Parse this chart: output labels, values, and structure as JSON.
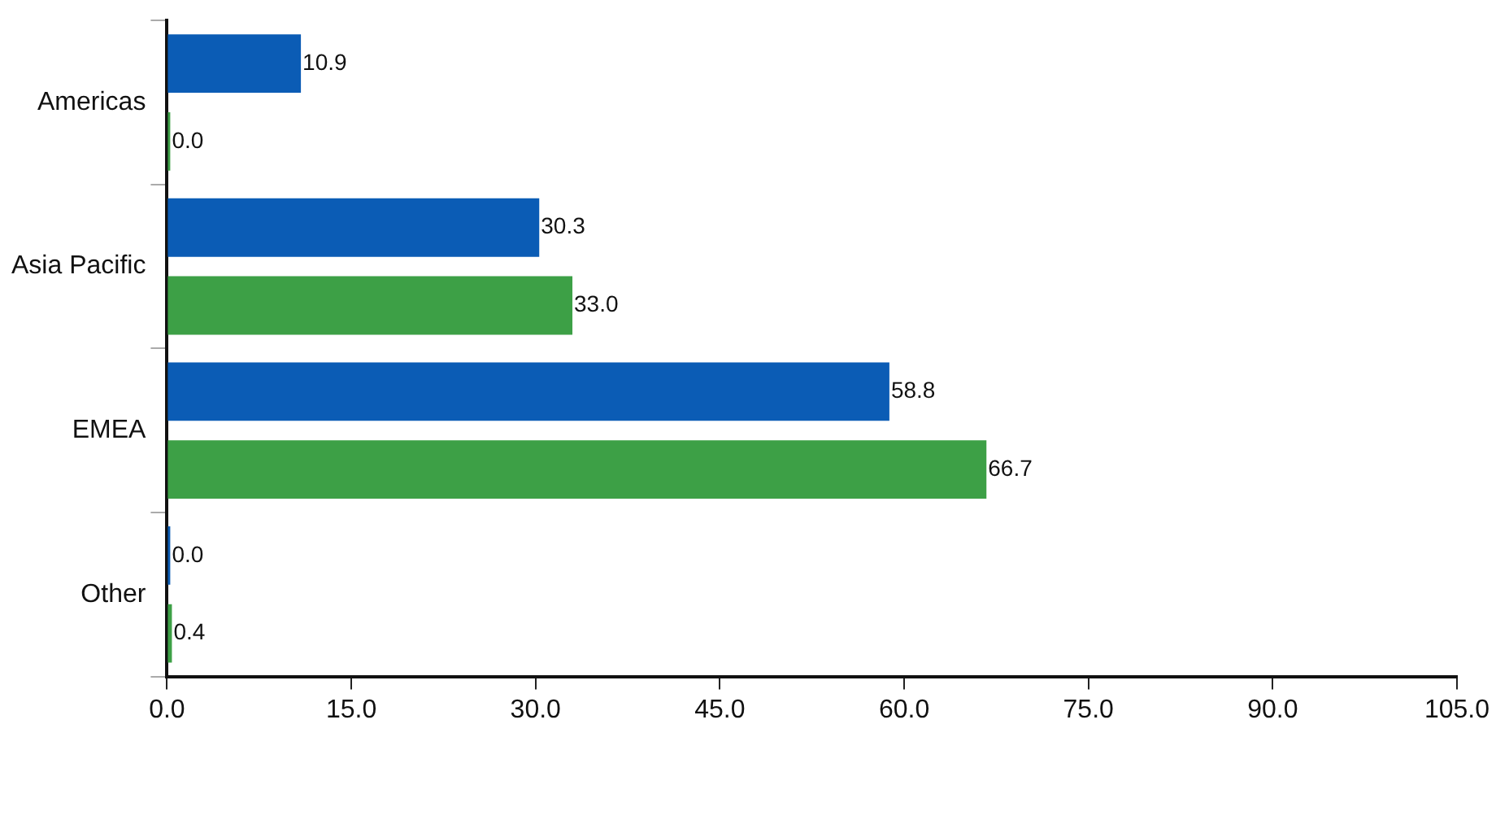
{
  "chart_data": {
    "type": "bar",
    "orientation": "horizontal",
    "categories": [
      "Americas",
      "Asia Pacific",
      "EMEA",
      "Other"
    ],
    "series": [
      {
        "color": "#0b5cb5",
        "values": [
          10.9,
          30.3,
          58.8,
          0
        ],
        "value_labels": [
          "10.9",
          "30.3",
          "58.8",
          "0.0"
        ]
      },
      {
        "color": "#3da046",
        "values": [
          0,
          33,
          66.7,
          0.4
        ],
        "value_labels": [
          "0.0",
          "33.0",
          "66.7",
          "0.4"
        ]
      }
    ],
    "xlim": [
      0,
      105
    ],
    "xticks": [
      {
        "value": 0,
        "label": "0.0"
      },
      {
        "value": 15,
        "label": "15.0"
      },
      {
        "value": 30,
        "label": "30.0"
      },
      {
        "value": 45,
        "label": "45.0"
      },
      {
        "value": 60,
        "label": "60.0"
      },
      {
        "value": 75,
        "label": "75.0"
      },
      {
        "value": 90,
        "label": "90.0"
      },
      {
        "value": 105,
        "label": "105.0"
      }
    ],
    "grid": false,
    "legend": false
  }
}
